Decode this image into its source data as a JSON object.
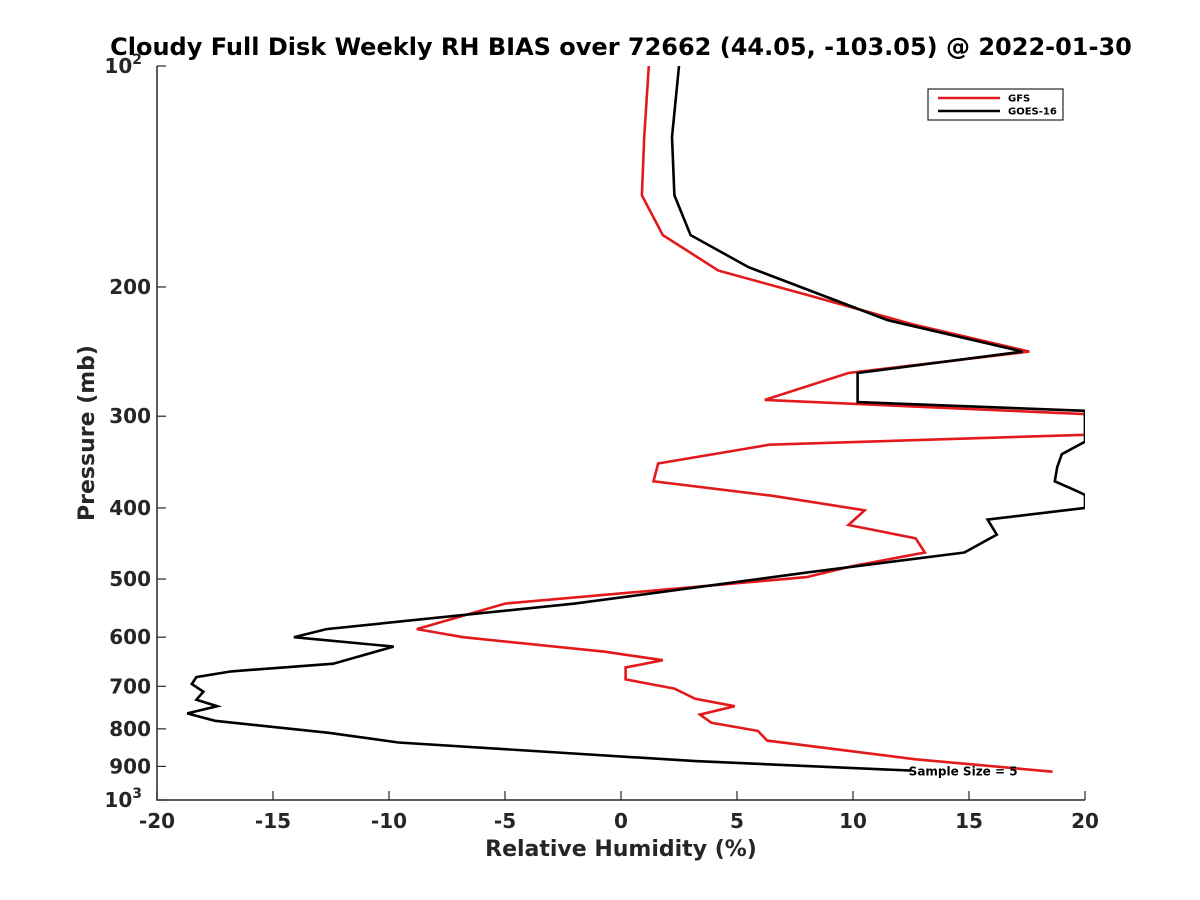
{
  "chart_data": {
    "type": "line",
    "title": "Cloudy Full Disk Weekly RH BIAS over 72662 (44.05, -103.05) @ 2022-01-30",
    "xlabel": "Relative Humidity (%)",
    "ylabel": "Pressure (mb)",
    "xlim": [
      -20,
      20
    ],
    "ylim": [
      100,
      1000
    ],
    "yscale": "log",
    "y_reversed": true,
    "grid": false,
    "legend_position": "top-right",
    "x_ticks": [
      {
        "value": -20,
        "label": "-20"
      },
      {
        "value": -15,
        "label": "-15"
      },
      {
        "value": -10,
        "label": "-10"
      },
      {
        "value": -5,
        "label": "-5"
      },
      {
        "value": 0,
        "label": "0"
      },
      {
        "value": 5,
        "label": "5"
      },
      {
        "value": 10,
        "label": "10"
      },
      {
        "value": 15,
        "label": "15"
      },
      {
        "value": 20,
        "label": "20"
      }
    ],
    "y_ticks": [
      {
        "value": 100,
        "base": "10",
        "exp": "2"
      },
      {
        "value": 200,
        "base": "200",
        "exp": ""
      },
      {
        "value": 300,
        "base": "300",
        "exp": ""
      },
      {
        "value": 400,
        "base": "400",
        "exp": ""
      },
      {
        "value": 500,
        "base": "500",
        "exp": ""
      },
      {
        "value": 600,
        "base": "600",
        "exp": ""
      },
      {
        "value": 700,
        "base": "700",
        "exp": ""
      },
      {
        "value": 800,
        "base": "800",
        "exp": ""
      },
      {
        "value": 900,
        "base": "900",
        "exp": ""
      },
      {
        "value": 1000,
        "base": "10",
        "exp": "3"
      }
    ],
    "series": [
      {
        "name": "GFS",
        "color": "#e31a1c",
        "points": [
          [
            1.2,
            100
          ],
          [
            1.0,
            125
          ],
          [
            0.9,
            150
          ],
          [
            1.8,
            170
          ],
          [
            4.2,
            190
          ],
          [
            8.0,
            205
          ],
          [
            12.6,
            225
          ],
          [
            17.6,
            245
          ],
          [
            9.8,
            262
          ],
          [
            6.2,
            285
          ],
          [
            20.0,
            298
          ],
          [
            20.0,
            318
          ],
          [
            6.4,
            328
          ],
          [
            1.6,
            348
          ],
          [
            1.4,
            368
          ],
          [
            6.5,
            385
          ],
          [
            10.5,
            403
          ],
          [
            9.8,
            422
          ],
          [
            12.7,
            440
          ],
          [
            13.1,
            460
          ],
          [
            10.0,
            480
          ],
          [
            8.0,
            497
          ],
          [
            -5.0,
            540
          ],
          [
            -8.8,
            585
          ],
          [
            -6.8,
            600
          ],
          [
            -0.7,
            628
          ],
          [
            1.8,
            645
          ],
          [
            0.2,
            660
          ],
          [
            0.2,
            685
          ],
          [
            2.3,
            705
          ],
          [
            3.2,
            728
          ],
          [
            4.9,
            745
          ],
          [
            3.4,
            765
          ],
          [
            3.9,
            785
          ],
          [
            5.9,
            805
          ],
          [
            6.3,
            830
          ],
          [
            12.7,
            880
          ],
          [
            18.6,
            915
          ]
        ]
      },
      {
        "name": "GOES-16",
        "color": "#000000",
        "points": [
          [
            2.5,
            100
          ],
          [
            2.2,
            125
          ],
          [
            2.3,
            150
          ],
          [
            3.0,
            170
          ],
          [
            5.5,
            188
          ],
          [
            11.5,
            222
          ],
          [
            17.3,
            245
          ],
          [
            10.2,
            262
          ],
          [
            10.2,
            287
          ],
          [
            20.0,
            295
          ],
          [
            20.0,
            325
          ],
          [
            19.0,
            338
          ],
          [
            18.8,
            352
          ],
          [
            18.7,
            368
          ],
          [
            19.7,
            380
          ],
          [
            20.0,
            384
          ],
          [
            20.0,
            400
          ],
          [
            15.8,
            415
          ],
          [
            16.2,
            435
          ],
          [
            14.8,
            460
          ],
          [
            8.0,
            490
          ],
          [
            -2.0,
            540
          ],
          [
            -12.7,
            585
          ],
          [
            -14.1,
            600
          ],
          [
            -9.8,
            618
          ],
          [
            -12.4,
            652
          ],
          [
            -16.8,
            668
          ],
          [
            -18.3,
            680
          ],
          [
            -18.5,
            695
          ],
          [
            -18.0,
            712
          ],
          [
            -18.3,
            730
          ],
          [
            -17.4,
            745
          ],
          [
            -18.7,
            762
          ],
          [
            -17.5,
            780
          ],
          [
            -12.6,
            810
          ],
          [
            -9.6,
            835
          ],
          [
            3.2,
            885
          ],
          [
            12.5,
            912
          ]
        ]
      }
    ],
    "annotations": [
      {
        "text": "Sample Size = 5",
        "x": 12.4,
        "y": 912
      }
    ]
  }
}
